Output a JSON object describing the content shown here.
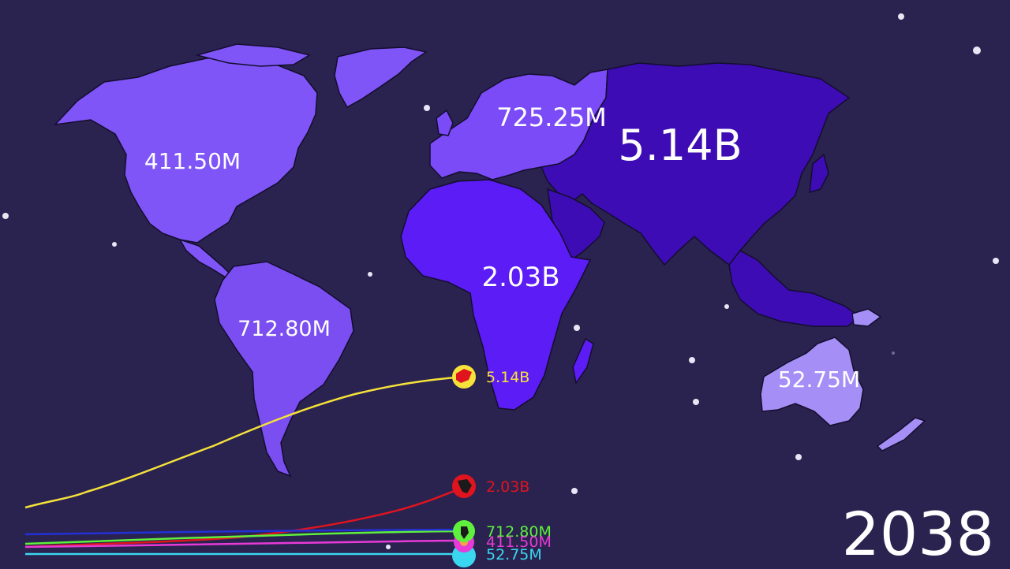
{
  "year": "2038",
  "colors": {
    "background": "#2a2350",
    "asia": "#3d0cb4",
    "africa": "#5b1cf5",
    "europe": "#7a4bf6",
    "north_america": "#7f55f7",
    "south_america": "#7a4ef0",
    "oceania": "#a58ef5"
  },
  "regions": {
    "asia": {
      "value": "5.14B"
    },
    "africa": {
      "value": "2.03B"
    },
    "europe": {
      "value": "725.25M"
    },
    "south_america": {
      "value": "712.80M"
    },
    "north_america": {
      "value": "411.50M"
    },
    "oceania": {
      "value": "52.75M"
    }
  },
  "series": [
    {
      "region": "asia",
      "value_label": "5.14B",
      "color": "#f5e23a",
      "icon": "asia-icon"
    },
    {
      "region": "africa",
      "value_label": "2.03B",
      "color": "#e0141e",
      "icon": "africa-icon"
    },
    {
      "region": "south_america",
      "value_label": "712.80M",
      "color": "#5ef03c",
      "icon": "south-america-icon"
    },
    {
      "region": "north_america",
      "value_label": "411.50M",
      "color": "#e83ad6",
      "icon": "north-america-icon"
    },
    {
      "region": "oceania",
      "value_label": "52.75M",
      "color": "#3ad8f0",
      "icon": "oceania-icon"
    }
  ]
}
